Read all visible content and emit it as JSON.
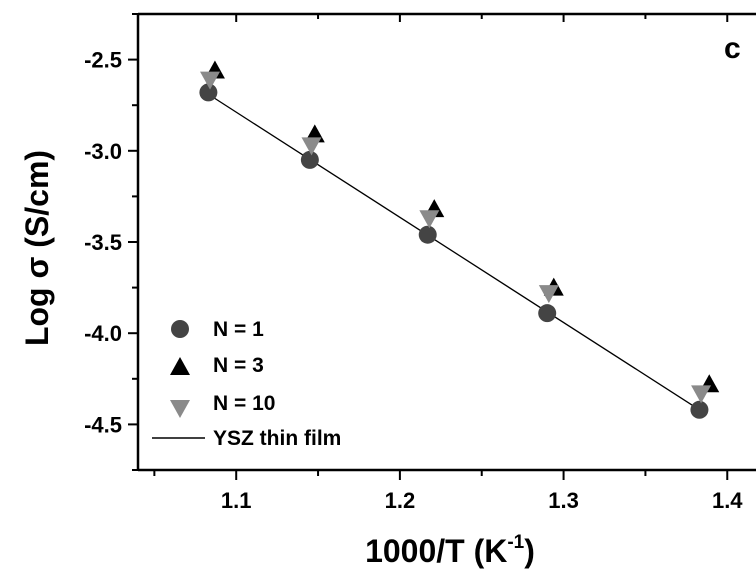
{
  "chart_data": {
    "type": "scatter",
    "panel_label": "c",
    "xlabel": "1000/T (K",
    "xlabel_sup": "-1",
    "xlabel_end": ")",
    "ylabel": "Log σ (S/cm)",
    "xlim": [
      1.04,
      1.42
    ],
    "ylim": [
      -4.75,
      -2.25
    ],
    "xticks": [
      1.1,
      1.2,
      1.3,
      1.4
    ],
    "xtick_labels": [
      "1.1",
      "1.2",
      "1.3",
      "1.4"
    ],
    "yticks": [
      -2.5,
      -3.0,
      -3.5,
      -4.0,
      -4.5
    ],
    "ytick_labels": [
      "-2.5",
      "-3.0",
      "-3.5",
      "-4.0",
      "-4.5"
    ],
    "legend_position": "bottom-left",
    "series": [
      {
        "name": "N = 1",
        "marker": "circle",
        "color": "#444444",
        "x": [
          1.083,
          1.145,
          1.217,
          1.29,
          1.383
        ],
        "y": [
          -2.68,
          -3.05,
          -3.46,
          -3.89,
          -4.42
        ]
      },
      {
        "name": "N = 3",
        "marker": "triangle-up",
        "color": "#000000",
        "x": [
          1.087,
          1.148,
          1.221,
          1.294,
          1.389
        ],
        "y": [
          -2.56,
          -2.91,
          -3.32,
          -3.75,
          -4.28
        ]
      },
      {
        "name": "N = 10",
        "marker": "triangle-down",
        "color": "#8a8a8a",
        "x": [
          1.084,
          1.146,
          1.218,
          1.291,
          1.384
        ],
        "y": [
          -2.61,
          -2.97,
          -3.37,
          -3.78,
          -4.33
        ]
      },
      {
        "name": "YSZ thin film",
        "marker": "line",
        "color": "#000000",
        "x": [
          1.083,
          1.383
        ],
        "y": [
          -2.69,
          -4.42
        ]
      }
    ]
  }
}
